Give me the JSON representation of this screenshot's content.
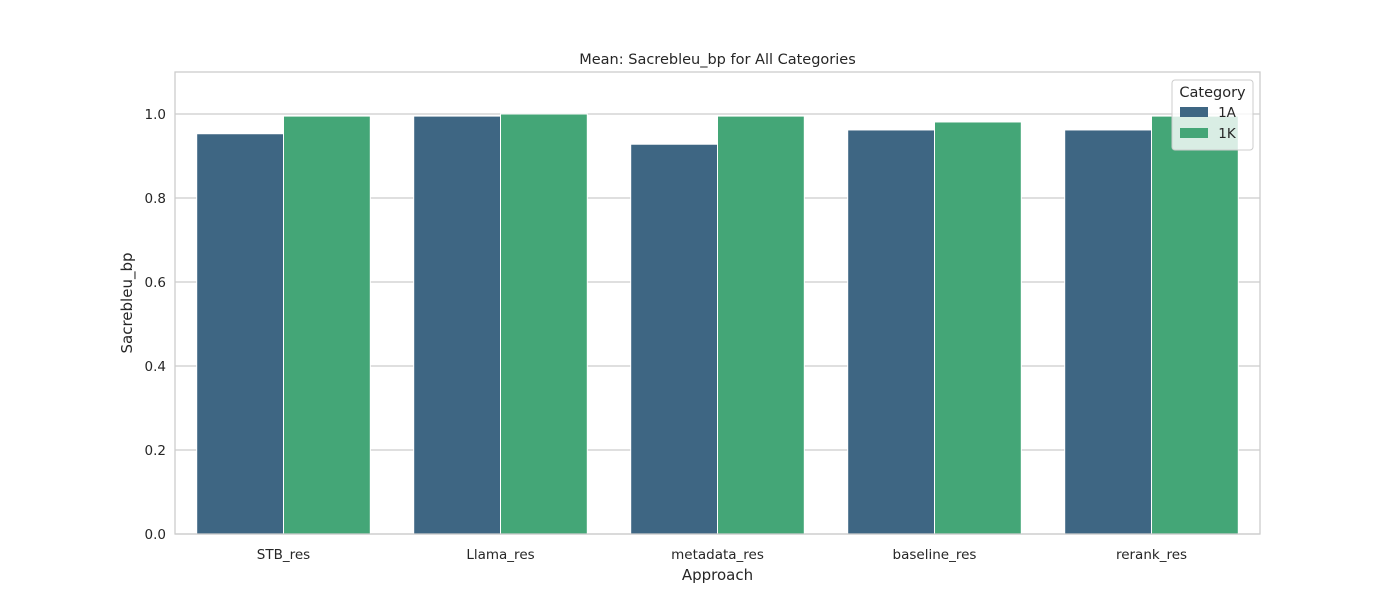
{
  "chart_data": {
    "type": "bar",
    "title": "Mean: Sacrebleu_bp for All Categories",
    "xlabel": "Approach",
    "ylabel": "Sacrebleu_bp",
    "categories": [
      "STB_res",
      "Llama_res",
      "metadata_res",
      "baseline_res",
      "rerank_res"
    ],
    "series": [
      {
        "name": "1A",
        "color": "#3e6683",
        "values": [
          0.953,
          0.995,
          0.928,
          0.962,
          0.962
        ]
      },
      {
        "name": "1K",
        "color": "#44a677",
        "values": [
          0.995,
          1.0,
          0.995,
          0.981,
          0.995
        ]
      }
    ],
    "ylim": [
      0,
      1.1
    ],
    "yticks": [
      0.0,
      0.2,
      0.4,
      0.6,
      0.8,
      1.0
    ],
    "ytick_labels": [
      "0.0",
      "0.2",
      "0.4",
      "0.6",
      "0.8",
      "1.0"
    ],
    "grid": "horizontal",
    "legend": {
      "title": "Category",
      "placement": "top-right"
    }
  }
}
